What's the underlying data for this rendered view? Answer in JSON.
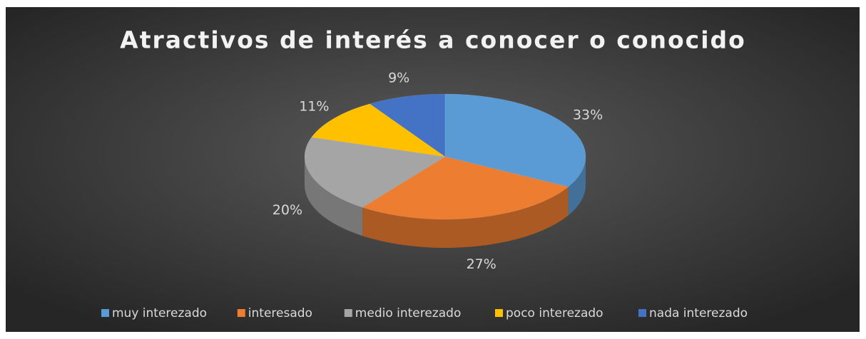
{
  "chart_data": {
    "type": "pie",
    "title": "Atractivos de interés a conocer o conocido",
    "categories": [
      "muy interezado",
      "interesado",
      "medio interezado",
      "poco interezado",
      "nada interezado"
    ],
    "values": [
      33,
      27,
      20,
      11,
      9
    ],
    "value_labels": [
      "33%",
      "27%",
      "20%",
      "11%",
      "9%"
    ],
    "colors": [
      "#5b9bd5",
      "#ed7d31",
      "#a5a5a5",
      "#ffc000",
      "#4472c4"
    ],
    "legend": "bottom"
  }
}
